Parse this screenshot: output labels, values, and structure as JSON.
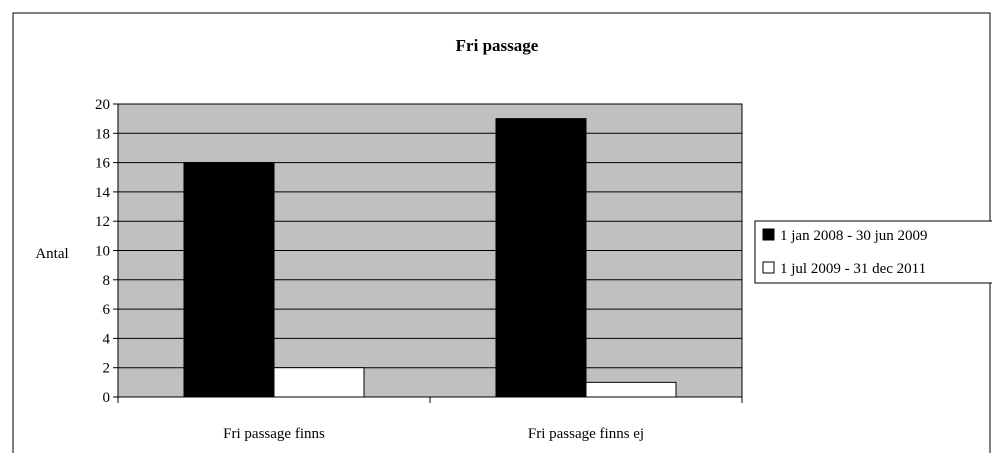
{
  "chart_data": {
    "type": "bar",
    "title": "Fri passage",
    "xlabel": "",
    "ylabel": "Antal",
    "categories": [
      "Fri passage finns",
      "Fri passage finns ej"
    ],
    "series": [
      {
        "name": "1 jan 2008 - 30 jun 2009",
        "values": [
          16,
          19
        ],
        "color": "#000000"
      },
      {
        "name": "1 jul 2009 - 31 dec 2011",
        "values": [
          2,
          1
        ],
        "color": "#ffffff"
      }
    ],
    "ylim": [
      0,
      20
    ],
    "yticks": [
      0,
      2,
      4,
      6,
      8,
      10,
      12,
      14,
      16,
      18,
      20
    ],
    "grid": true,
    "legend": "right",
    "plot_background": "#c0c0c0"
  }
}
